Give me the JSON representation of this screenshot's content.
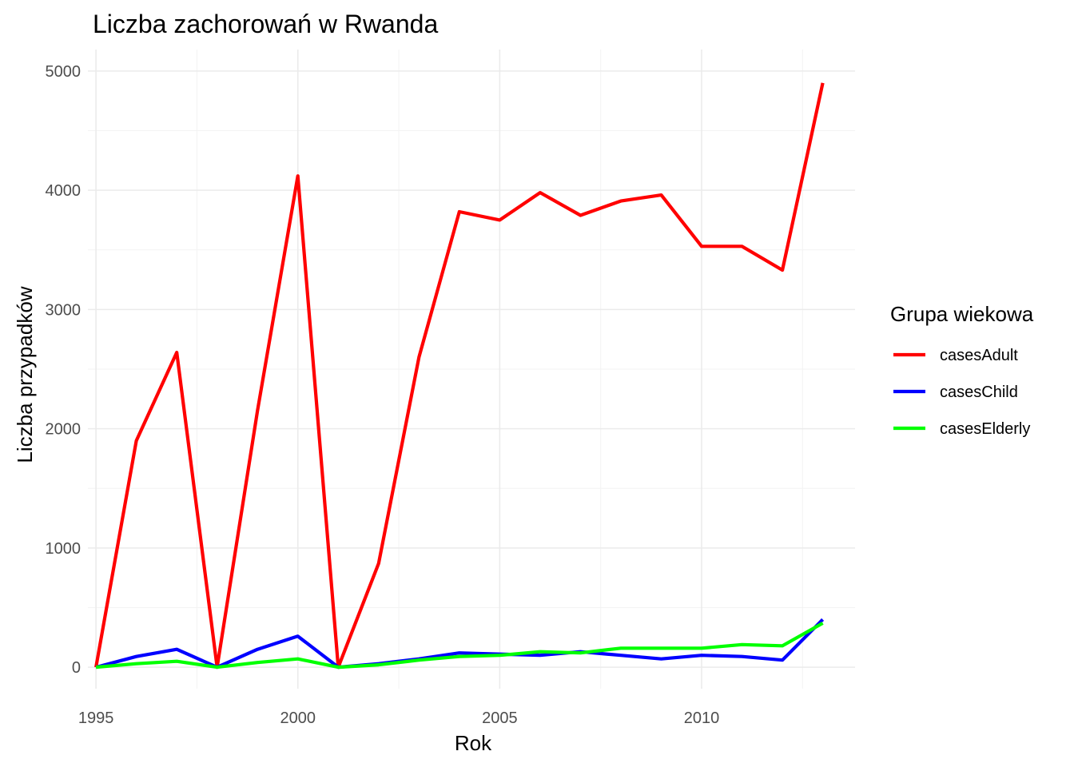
{
  "chart_data": {
    "type": "line",
    "title": "Liczba zachorowań w Rwanda",
    "xlabel": "Rok",
    "ylabel": "Liczba przypadków",
    "xlim": [
      1994.8,
      2013.8
    ],
    "ylim": [
      -180,
      5180
    ],
    "x_ticks": [
      1995,
      2000,
      2005,
      2010
    ],
    "y_ticks": [
      0,
      1000,
      2000,
      3000,
      4000,
      5000
    ],
    "grid": true,
    "legend": {
      "title": "Grupa wiekowa",
      "position": "right"
    },
    "x": [
      1995,
      1996,
      1997,
      1998,
      1999,
      2000,
      2001,
      2002,
      2003,
      2004,
      2005,
      2006,
      2007,
      2008,
      2009,
      2010,
      2011,
      2012,
      2013
    ],
    "series": [
      {
        "name": "casesAdult",
        "color": "#ff0000",
        "values": [
          0,
          1900,
          2640,
          0,
          2150,
          4120,
          0,
          870,
          2600,
          3820,
          3750,
          3980,
          3790,
          3910,
          3960,
          3530,
          3530,
          3330,
          4900
        ]
      },
      {
        "name": "casesChild",
        "color": "#0000ff",
        "values": [
          0,
          90,
          150,
          0,
          150,
          260,
          0,
          30,
          70,
          120,
          110,
          100,
          130,
          100,
          70,
          100,
          90,
          60,
          400
        ]
      },
      {
        "name": "casesElderly",
        "color": "#00ff00",
        "values": [
          0,
          30,
          50,
          0,
          40,
          70,
          0,
          20,
          60,
          90,
          100,
          130,
          120,
          160,
          160,
          160,
          190,
          180,
          370
        ]
      }
    ]
  }
}
